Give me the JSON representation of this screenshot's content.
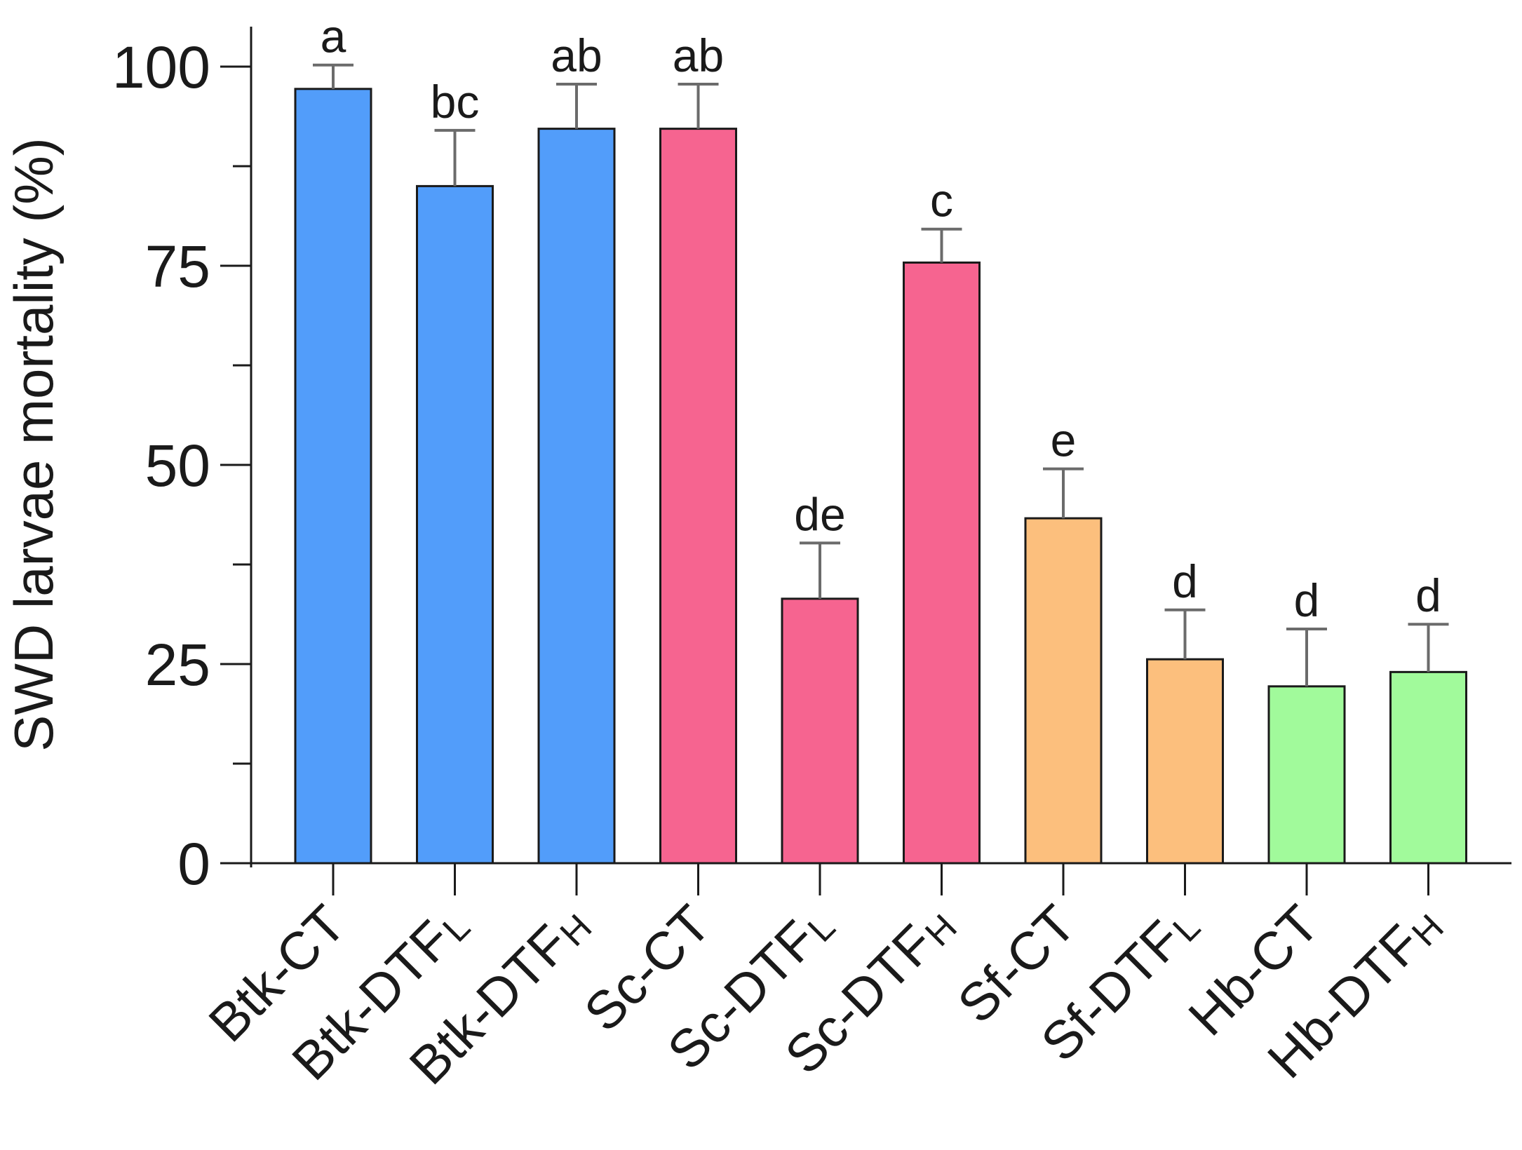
{
  "chart_data": {
    "type": "bar",
    "title": "",
    "xlabel": "",
    "ylabel": "SWD larvae mortality (%)",
    "ylim": [
      0,
      100
    ],
    "yticks": [
      0,
      25,
      50,
      75,
      100
    ],
    "yminor_ticks": [
      12.5,
      37.5,
      62.5,
      87.5
    ],
    "grid": false,
    "legend": "none",
    "categories": [
      {
        "base": "Btk-CT",
        "sub": ""
      },
      {
        "base": "Btk-DTF",
        "sub": "L"
      },
      {
        "base": "Btk-DTF",
        "sub": "H"
      },
      {
        "base": "Sc-CT",
        "sub": ""
      },
      {
        "base": "Sc-DTF",
        "sub": "L"
      },
      {
        "base": "Sc-DTF",
        "sub": "H"
      },
      {
        "base": "Sf-CT",
        "sub": ""
      },
      {
        "base": "Sf-DTF",
        "sub": "L"
      },
      {
        "base": "Hb-CT",
        "sub": ""
      },
      {
        "base": "Hb-DTF",
        "sub": "H"
      }
    ],
    "values": [
      97.2,
      85.0,
      92.2,
      92.2,
      33.2,
      75.4,
      43.3,
      25.6,
      22.2,
      24.0
    ],
    "errors": [
      3.0,
      7.0,
      5.6,
      5.6,
      7.0,
      4.2,
      6.2,
      6.2,
      7.2,
      6.0
    ],
    "significance_letters": [
      "a",
      "bc",
      "ab",
      "ab",
      "de",
      "c",
      "e",
      "d",
      "d",
      "d"
    ],
    "bar_colors": [
      "#529dfa",
      "#529dfa",
      "#529dfa",
      "#f66490",
      "#f66490",
      "#f66490",
      "#fcbf7d",
      "#fcbf7d",
      "#a1fa9b",
      "#a1fa9b"
    ],
    "edge_color": "#1a1a1a",
    "error_color": "#6b6b6b"
  }
}
